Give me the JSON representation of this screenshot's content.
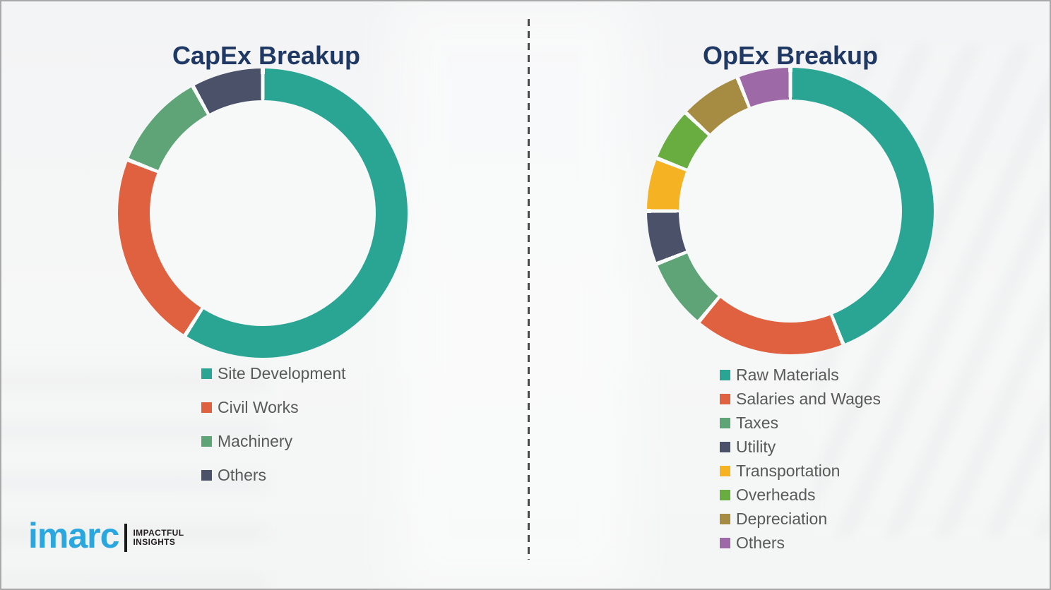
{
  "page": {
    "background_color": "#f4f5f5",
    "border_color": "#a9a9a9",
    "divider_color": "#4a4a4a",
    "title_color": "#1f3864",
    "legend_text_color": "#595959",
    "slice_separator_color": "#fafbfb"
  },
  "chart_data": [
    {
      "type": "pie",
      "variant": "donut",
      "title": "CapEx Breakup",
      "categories": [
        "Site Development",
        "Civil Works",
        "Machinery",
        "Others"
      ],
      "values": [
        59,
        22,
        11,
        8
      ],
      "values_note": "percent, estimated from arc angles (no labels shown)",
      "colors": [
        "#2aa594",
        "#df6140",
        "#5ea477",
        "#4b5168"
      ],
      "start_angle_deg": 0,
      "direction": "clockwise",
      "legend_position": "below-left"
    },
    {
      "type": "pie",
      "variant": "donut",
      "title": "OpEx Breakup",
      "categories": [
        "Raw Materials",
        "Salaries and Wages",
        "Taxes",
        "Utility",
        "Transportation",
        "Overheads",
        "Depreciation",
        "Others"
      ],
      "values": [
        44,
        17,
        8,
        6,
        6,
        6,
        7,
        6
      ],
      "values_note": "percent, estimated from arc angles (no labels shown)",
      "colors": [
        "#2aa594",
        "#df6140",
        "#5ea477",
        "#4b5168",
        "#f5b324",
        "#69ad41",
        "#a68c42",
        "#9d69a6"
      ],
      "start_angle_deg": 0,
      "direction": "clockwise",
      "legend_position": "below-left"
    }
  ],
  "logo": {
    "wordmark": "imarc",
    "tagline_line1": "IMPACTFUL",
    "tagline_line2": "INSIGHTS",
    "wordmark_color": "#2ba7e0",
    "tagline_color": "#231f20"
  }
}
